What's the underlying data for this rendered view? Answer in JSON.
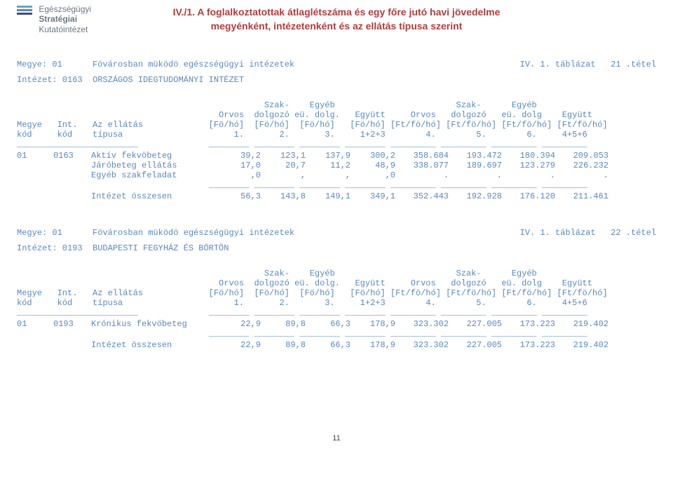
{
  "logo": {
    "line1": "Egészségügyi",
    "line2": "Stratégiai",
    "line3": "Kutatóintézet",
    "bar_colors": [
      "#5aa9c9",
      "#5a87c2",
      "#3f4a8c"
    ]
  },
  "title": {
    "line1": "IV./1. A foglalkoztatottak átlaglétszáma és egy főre jutó havi jövedelme",
    "line2": "megyénként,  intézetenként és az ellátás típusa szerint"
  },
  "sections": [
    {
      "meta_left1": "Megye: 01      Fövárosban müködö egészségügyi intézetek",
      "meta_right1": "IV. 1. táblázat   21 .tétel",
      "meta_left2": "Intézet: 0163  ORSZÁGOS IDEGTUDOMÁNYI INTÉZET",
      "hdr1": "                                                 Szak-    Egyéb                        Szak-      Egyéb",
      "hdr2": "                                        Orvos  dolgozó eü. dolg.   Együtt     Orvos   dolgozó   eü. dolg    Együtt",
      "hdr3": "Megye   Int.   Az ellátás             [Fö/hó]  [Fö/hó]  [Fö/hó]   [Fö/hó] [Ft/fö/hó] [Ft/fö/hó] [Ft/fö/hó] [Ft/fö/hó]",
      "hdr4": "kód     kód    típusa                      1.       2.       3.     1+2+3        4.        5.        6.     4+5+6",
      "cols": {
        "c0_w": 48,
        "c1_w": 50,
        "c2_w": 178,
        "num_w": 66,
        "num_w_wide": 78
      },
      "rows": [
        {
          "c0": "01",
          "c1": "0163",
          "c2": "Aktív fekvöbeteg",
          "v": [
            " 39,2",
            "123,1",
            "137,9",
            "300,2",
            "358.684",
            "193.472",
            "180.394",
            "209.053"
          ]
        },
        {
          "c0": "",
          "c1": "",
          "c2": "Járóbeteg ellátás",
          "v": [
            " 17,0",
            " 20,7",
            " 11,2",
            " 48,9",
            "338.077",
            "189.697",
            "123.279",
            "226.232"
          ]
        },
        {
          "c0": "",
          "c1": "",
          "c2": "Egyéb szakfeladat",
          "v": [
            "   ,0",
            "    ,",
            "    ,",
            "   ,0",
            "      .",
            "      .",
            "      .",
            "      ."
          ]
        }
      ],
      "total": {
        "c2": "Intézet összesen",
        "v": [
          " 56,3",
          "143,8",
          "149,1",
          "349,1",
          "352.443",
          "192.928",
          "176.120",
          "211.461"
        ]
      }
    },
    {
      "meta_left1": "Megye: 01      Fövárosban müködö egészségügyi intézetek",
      "meta_right1": "IV. 1. táblázat   22 .tétel",
      "meta_left2": "Intézet: 0193  BUDAPESTI FEGYHÁZ ÉS BÖRTÖN",
      "hdr1": "                                                 Szak-    Egyéb                        Szak-      Egyéb",
      "hdr2": "                                        Orvos  dolgozó eü. dolg.   Együtt     Orvos   dolgozó   eü. dolg    Együtt",
      "hdr3": "Megye   Int.   Az ellátás             [Fö/hó]  [Fö/hó]  [Fö/hó]   [Fö/hó] [Ft/fö/hó] [Ft/fö/hó] [Ft/fö/hó] [Ft/fö/hó]",
      "hdr4": "kód     kód    típusa                      1.       2.       3.     1+2+3        4.        5.        6.     4+5+6",
      "rows": [
        {
          "c0": "01",
          "c1": "0193",
          "c2": "Krónikus fekvöbeteg",
          "v": [
            " 22,9",
            " 89,8",
            " 66,3",
            "178,9",
            "323.302",
            "227.005",
            "173.223",
            "219.402"
          ]
        }
      ],
      "total": {
        "c2": "Intézet összesen",
        "v": [
          " 22,9",
          " 89,8",
          " 66,3",
          "178,9",
          "323.302",
          "227.005",
          "173.223",
          "219.402"
        ]
      }
    }
  ],
  "page_number": "11",
  "text_color": "#5a87c2",
  "title_color": "#b43b3b"
}
